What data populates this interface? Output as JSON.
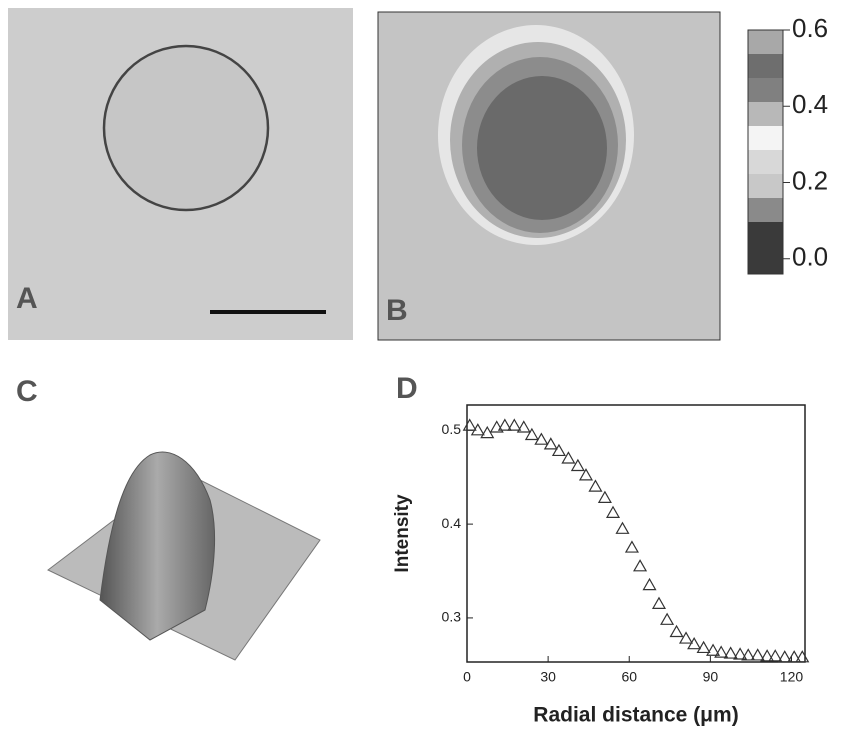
{
  "panels": {
    "a": "A",
    "b": "B",
    "c": "C"
  },
  "colorbar": {
    "lim": [
      -0.04,
      0.6
    ],
    "ticks": [
      0.6,
      0.4,
      0.2,
      {
        "value": 0,
        "label": "0.0"
      }
    ]
  },
  "chart_data": {
    "type": "scatter",
    "panel_label": "D",
    "y_label": "Intensity",
    "x_label": "Radial distance (μm)",
    "xlim": [
      0,
      125
    ],
    "ylim": [
      0.253,
      0.527
    ],
    "xticks": [
      0,
      30,
      60,
      90,
      120
    ],
    "yticks": [
      0.3,
      0.4,
      0.5
    ],
    "marker": "triangle",
    "color": "#333333",
    "x": [
      1,
      4,
      7.5,
      11,
      14,
      17.5,
      21,
      24,
      27.5,
      31,
      34,
      37.5,
      41,
      44,
      47.5,
      51,
      54,
      57.5,
      61,
      64,
      67.5,
      71,
      74,
      77.5,
      81,
      84,
      87.5,
      91,
      94,
      97.5,
      101,
      104,
      107.5,
      111,
      114,
      117.5,
      121,
      124
    ],
    "values": [
      0.505,
      0.5,
      0.497,
      0.503,
      0.505,
      0.505,
      0.503,
      0.495,
      0.49,
      0.485,
      0.478,
      0.47,
      0.462,
      0.452,
      0.44,
      0.428,
      0.412,
      0.395,
      0.375,
      0.355,
      0.335,
      0.315,
      0.298,
      0.285,
      0.278,
      0.272,
      0.268,
      0.265,
      0.263,
      0.262,
      0.261,
      0.26,
      0.26,
      0.259,
      0.259,
      0.258,
      0.258,
      0.258
    ]
  }
}
